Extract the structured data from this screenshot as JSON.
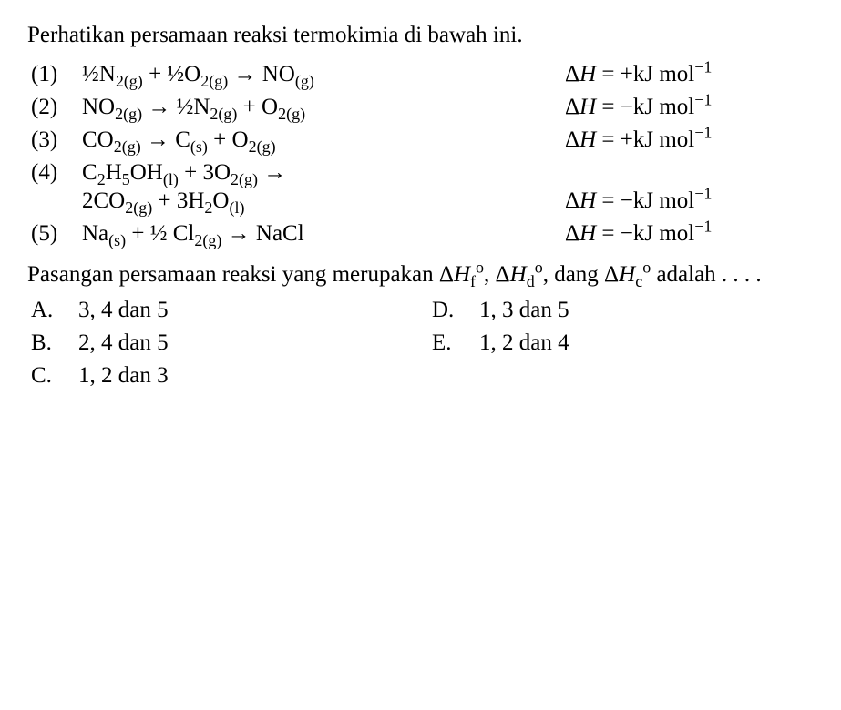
{
  "intro": "Perhatikan persamaan reaksi termokimia di bawah ini.",
  "eq": {
    "1": {
      "num": "(1)",
      "body": "½N<span class=sub>2(g)</span> + ½O<span class=sub>2(g)</span> → NO<span class=sub>(g)</span>",
      "dh": "Δ<span class=it>H</span> = +kJ mol<span class=sup>−1</span>"
    },
    "2": {
      "num": "(2)",
      "body": "NO<span class=sub>2(g)</span> → ½N<span class=sub>2(g)</span> + O<span class=sub>2(g)</span>",
      "dh": "Δ<span class=it>H</span> = −kJ mol<span class=sup>−1</span>"
    },
    "3": {
      "num": "(3)",
      "body": "CO<span class=sub>2(g)</span> → C<span class=sub>(s)</span> + O<span class=sub>2(g)</span>",
      "dh": "Δ<span class=it>H</span> = +kJ mol<span class=sup>−1</span>"
    },
    "4": {
      "num": "(4)",
      "body": "C<span class=sub>2</span>H<span class=sub>5</span>OH<span class=sub>(l)</span> + 3O<span class=sub>2(g)</span> →<span class=eqline2>2CO<span class=sub>2(g)</span> + 3H<span class=sub>2</span>O<span class=sub>(l)</span></span>",
      "dh": "<span class=eqline2>&nbsp;</span>Δ<span class=it>H</span> = −kJ mol<span class=sup>−1</span>"
    },
    "5": {
      "num": "(5)",
      "body": "Na<span class=sub>(s)</span> + ½ Cl<span class=sub>2(g)</span> → NaCl",
      "dh": "Δ<span class=it>H</span> = −kJ mol<span class=sup>−1</span>"
    }
  },
  "closing": "Pasangan persamaan reaksi yang merupakan Δ<span class=it>H</span><span class=sub>f</span><span class=sup>o</span>, Δ<span class=it>H</span><span class=sub>d</span><span class=sup>o</span>, dang Δ<span class=it>H</span><span class=sub>c</span><span class=sup>o</span> adalah . . . .",
  "options": {
    "A": {
      "letter": "A.",
      "text": "3, 4 dan 5"
    },
    "B": {
      "letter": "B.",
      "text": "2, 4 dan 5"
    },
    "C": {
      "letter": "C.",
      "text": "1, 2 dan 3"
    },
    "D": {
      "letter": "D.",
      "text": "1, 3 dan 5"
    },
    "E": {
      "letter": "E.",
      "text": "1, 2 dan 4"
    }
  }
}
